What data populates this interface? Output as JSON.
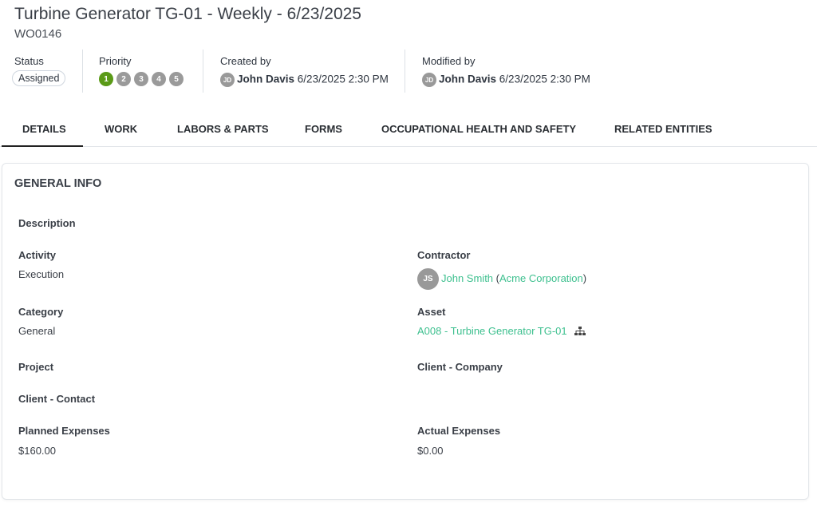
{
  "header": {
    "title": "Turbine Generator TG-01 - Weekly - 6/23/2025",
    "work_order_id": "WO0146"
  },
  "meta": {
    "status_label": "Status",
    "status_value": "Assigned",
    "priority_label": "Priority",
    "priority_levels": [
      "1",
      "2",
      "3",
      "4",
      "5"
    ],
    "priority_selected": 1,
    "created_label": "Created by",
    "created_initials": "JD",
    "created_name": "John Davis",
    "created_date": "6/23/2025 2:30 PM",
    "modified_label": "Modified by",
    "modified_initials": "JD",
    "modified_name": "John Davis",
    "modified_date": "6/23/2025 2:30 PM"
  },
  "tabs": [
    {
      "label": "DETAILS",
      "active": true
    },
    {
      "label": "WORK"
    },
    {
      "label": "LABORS & PARTS"
    },
    {
      "label": "FORMS"
    },
    {
      "label": "OCCUPATIONAL HEALTH AND SAFETY"
    },
    {
      "label": "RELATED ENTITIES"
    }
  ],
  "general": {
    "title": "GENERAL INFO",
    "description_label": "Description",
    "description_value": "",
    "activity_label": "Activity",
    "activity_value": "Execution",
    "contractor_label": "Contractor",
    "contractor_initials": "JS",
    "contractor_name": "John Smith",
    "contractor_company": "Acme Corporation",
    "category_label": "Category",
    "category_value": "General",
    "asset_label": "Asset",
    "asset_value": "A008 - Turbine Generator TG-01",
    "asset_icon": "hierarchy-icon",
    "project_label": "Project",
    "project_value": "",
    "client_company_label": "Client - Company",
    "client_company_value": "",
    "client_contact_label": "Client - Contact",
    "client_contact_value": "",
    "planned_label": "Planned Expenses",
    "planned_value": "$160.00",
    "actual_label": "Actual Expenses",
    "actual_value": "$0.00"
  },
  "colors": {
    "accent_link": "#3ec08f",
    "priority_selected": "#5a9a17",
    "priority_default": "#9a9a9a"
  }
}
